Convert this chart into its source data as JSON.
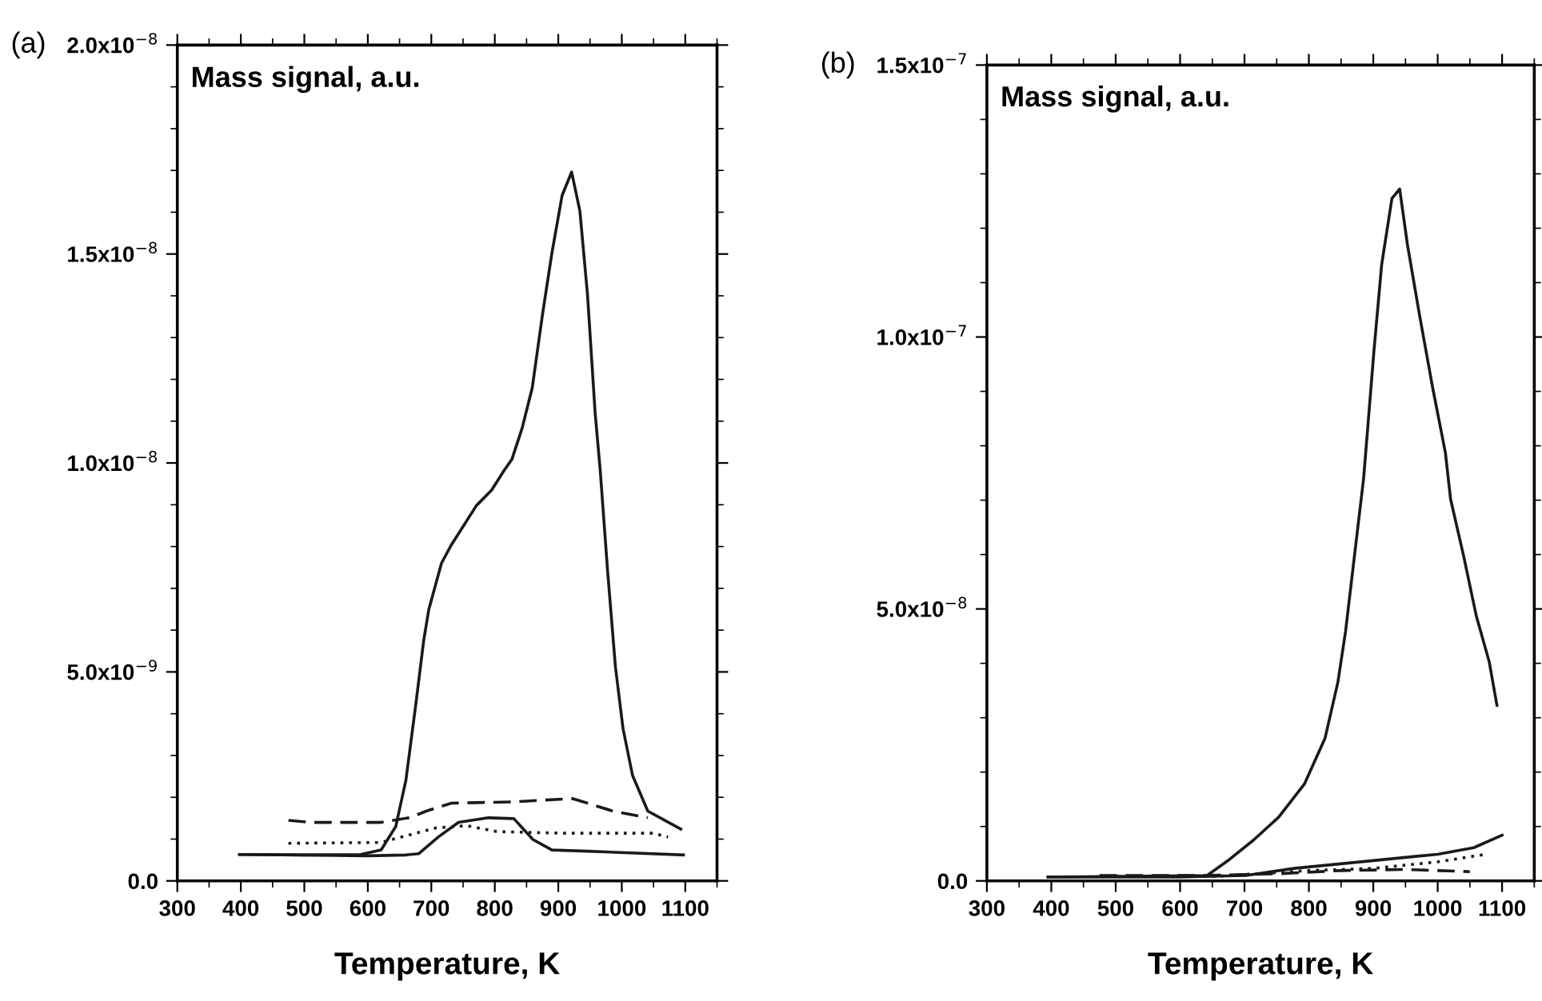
{
  "chart_data": [
    {
      "type": "line",
      "title": "(a)",
      "ylabel": "Mass signal, a.u.",
      "xlabel": "Temperature, K",
      "xlim": [
        300,
        1150
      ],
      "xticks": [
        300,
        400,
        500,
        600,
        700,
        800,
        900,
        1000,
        1100
      ],
      "ylim": [
        0,
        2e-08
      ],
      "yticks": [
        {
          "value": 0,
          "label": "0.0"
        },
        {
          "value": 5e-09,
          "label": "5.0x10$^{−9}$"
        },
        {
          "value": 1e-08,
          "label": "1.0x10$^{−8}$"
        },
        {
          "value": 1.5e-08,
          "label": "1.5x10$^{−8}$"
        },
        {
          "value": 2e-08,
          "label": "2.0x10$^{−8}$"
        }
      ],
      "grid": false,
      "legend": false,
      "series": [
        {
          "color": "#1a1a1a",
          "line_style": "solid",
          "x": [
            398,
            500,
            589,
            621,
            644,
            660,
            676,
            688,
            696,
            716,
            732,
            771,
            795,
            815,
            827,
            843,
            859,
            875,
            890,
            906,
            921,
            934,
            946,
            958,
            966,
            978,
            990,
            1002,
            1017,
            1041,
            1093
          ],
          "values": [
            6.3e-10,
            6.2e-10,
            6.3e-10,
            7.4e-10,
            1.3e-09,
            2.41e-09,
            4.27e-09,
            5.75e-09,
            6.49e-09,
            7.6e-09,
            8.05e-09,
            8.98e-09,
            9.35e-09,
            9.83e-09,
            1.009e-08,
            1.083e-08,
            1.18e-08,
            1.354e-08,
            1.503e-08,
            1.64e-08,
            1.696e-08,
            1.603e-08,
            1.403e-08,
            1.12e-08,
            9.83e-09,
            7.35e-09,
            5.12e-09,
            3.64e-09,
            2.52e-09,
            1.67e-09,
            1.24e-09
          ]
        },
        {
          "color": "#1a1a1a",
          "line_style": "solid",
          "x": [
            398,
            500,
            600,
            660,
            680,
            711,
            743,
            790,
            830,
            860,
            890,
            946,
            1097
          ],
          "values": [
            6.3e-10,
            6.2e-10,
            6e-10,
            6.2e-10,
            6.5e-10,
            1.05e-09,
            1.4e-09,
            1.51e-09,
            1.49e-09,
            9.9e-10,
            7.4e-10,
            7.1e-10,
            6.2e-10
          ]
        },
        {
          "color": "#1a1a1a",
          "line_style": "dashed",
          "x": [
            475,
            511,
            621,
            668,
            692,
            732,
            827,
            922,
            946,
            986,
            1041
          ],
          "values": [
            1.45e-09,
            1.4e-09,
            1.4e-09,
            1.52e-09,
            1.67e-09,
            1.86e-09,
            1.89e-09,
            1.97e-09,
            1.86e-09,
            1.67e-09,
            1.51e-09
          ]
        },
        {
          "color": "#1a1a1a",
          "line_style": "dotted",
          "x": [
            475,
            621,
            668,
            708,
            756,
            803,
            906,
            1049,
            1073
          ],
          "values": [
            9e-10,
            9.2e-10,
            1.11e-09,
            1.27e-09,
            1.32e-09,
            1.18e-09,
            1.14e-09,
            1.14e-09,
            1.05e-09
          ]
        }
      ]
    },
    {
      "type": "line",
      "title": "(b)",
      "ylabel": "Mass signal, a.u.",
      "xlabel": "Temperature, K",
      "xlim": [
        300,
        1150
      ],
      "xticks": [
        300,
        400,
        500,
        600,
        700,
        800,
        900,
        1000,
        1100
      ],
      "ylim": [
        0,
        1.5e-07
      ],
      "yticks": [
        {
          "value": 0,
          "label": "0.0"
        },
        {
          "value": 5e-08,
          "label": "5.0x10$^{−8}$"
        },
        {
          "value": 1e-07,
          "label": "1.0x10$^{−7}$"
        },
        {
          "value": 1.5e-07,
          "label": "1.5x10$^{−7}$"
        }
      ],
      "grid": false,
      "legend": false,
      "series": [
        {
          "color": "#1a1a1a",
          "line_style": "solid",
          "x": [
            395,
            642,
            674,
            714,
            753,
            793,
            825,
            845,
            857,
            869,
            885,
            901,
            913,
            929,
            941,
            953,
            972,
            992,
            1012,
            1020,
            1040,
            1060,
            1080,
            1092
          ],
          "values": [
            7e-10,
            1e-09,
            3.7e-09,
            7.5e-09,
            1.17e-08,
            1.78e-08,
            2.62e-08,
            3.65e-08,
            4.59e-08,
            5.8e-08,
            7.4e-08,
            9.74e-08,
            1.133e-07,
            1.255e-07,
            1.272e-07,
            1.17e-07,
            1.039e-07,
            9.08e-08,
            7.87e-08,
            7.02e-08,
            5.99e-08,
            4.87e-08,
            4.03e-08,
            3.23e-08
          ]
        },
        {
          "color": "#1a1a1a",
          "line_style": "solid",
          "x": [
            395,
            600,
            702,
            777,
            897,
            1000,
            1056,
            1100
          ],
          "values": [
            7e-10,
            7e-10,
            1e-09,
            2.3e-09,
            3.7e-09,
            4.9e-09,
            6.1e-09,
            8.4e-09
          ]
        },
        {
          "color": "#1a1a1a",
          "line_style": "dashed",
          "x": [
            475,
            640,
            750,
            850,
            950,
            1050
          ],
          "values": [
            1e-09,
            1e-09,
            1.3e-09,
            1.9e-09,
            2.1e-09,
            1.7e-09
          ]
        },
        {
          "color": "#1a1a1a",
          "line_style": "dotted",
          "x": [
            475,
            650,
            800,
            900,
            1000,
            1075
          ],
          "values": [
            8e-10,
            8e-10,
            1.9e-09,
            2.3e-09,
            3.5e-09,
            4.9e-09
          ]
        }
      ]
    }
  ]
}
